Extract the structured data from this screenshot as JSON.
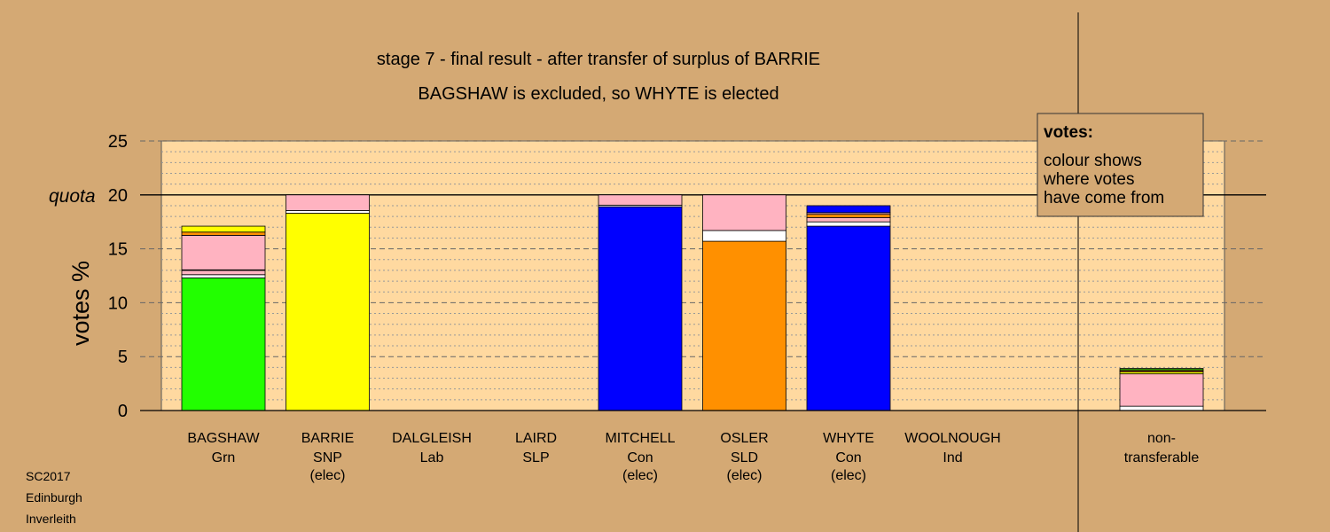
{
  "chart_data": {
    "type": "bar",
    "stacked": true,
    "title": "stage 7 - final result - after transfer of surplus of BARRIE",
    "subtitle": "BAGSHAW is excluded, so WHYTE is elected",
    "xlabel": "",
    "ylabel": "votes %",
    "ylim": [
      0,
      25
    ],
    "yticks": [
      0,
      5,
      10,
      15,
      20,
      25
    ],
    "quota": {
      "label": "quota",
      "value": 20
    },
    "grid": true,
    "colors": {
      "background": "#d4a974",
      "plot_area": "#ffd9a0",
      "green": "#22ff00",
      "yellow": "#ffff00",
      "blue": "#0000ff",
      "orange": "#ff9000",
      "pink": "#ffb3c1",
      "white": "#ffffff",
      "red": "#ff3030",
      "darkgreen": "#2e8b00"
    },
    "candidates": [
      {
        "name": "BAGSHAW",
        "party": "Grn",
        "status": "",
        "segments": [
          {
            "color": "green",
            "value": 12.3
          },
          {
            "color": "white",
            "value": 0.3
          },
          {
            "color": "pink",
            "value": 0.4
          },
          {
            "color": "white",
            "value": 0.05
          },
          {
            "color": "pink",
            "value": 3.2
          },
          {
            "color": "orange",
            "value": 0.3
          },
          {
            "color": "yellow",
            "value": 0.55
          }
        ]
      },
      {
        "name": "BARRIE",
        "party": "SNP",
        "status": "(elec)",
        "segments": [
          {
            "color": "yellow",
            "value": 18.3
          },
          {
            "color": "white",
            "value": 0.25
          },
          {
            "color": "pink",
            "value": 1.45
          }
        ]
      },
      {
        "name": "DALGLEISH",
        "party": "Lab",
        "status": "",
        "segments": []
      },
      {
        "name": "LAIRD",
        "party": "SLP",
        "status": "",
        "segments": []
      },
      {
        "name": "MITCHELL",
        "party": "Con",
        "status": "(elec)",
        "segments": [
          {
            "color": "blue",
            "value": 18.9
          },
          {
            "color": "white",
            "value": 0.15
          },
          {
            "color": "pink",
            "value": 0.95
          }
        ]
      },
      {
        "name": "OSLER",
        "party": "SLD",
        "status": "(elec)",
        "segments": [
          {
            "color": "orange",
            "value": 15.7
          },
          {
            "color": "white",
            "value": 1.0
          },
          {
            "color": "pink",
            "value": 3.3
          }
        ]
      },
      {
        "name": "WHYTE",
        "party": "Con",
        "status": "(elec)",
        "segments": [
          {
            "color": "blue",
            "value": 17.1
          },
          {
            "color": "white",
            "value": 0.4
          },
          {
            "color": "pink",
            "value": 0.4
          },
          {
            "color": "orange",
            "value": 0.3
          },
          {
            "color": "pink",
            "value": 0.15
          },
          {
            "color": "blue",
            "value": 0.65
          }
        ]
      },
      {
        "name": "WOOLNOUGH",
        "party": "Ind",
        "status": "",
        "segments": []
      }
    ],
    "nontransferable": {
      "label_line1": "non-",
      "label_line2": "transferable",
      "segments": [
        {
          "color": "white",
          "value": 0.4
        },
        {
          "color": "pink",
          "value": 3.0
        },
        {
          "color": "yellow",
          "value": 0.2
        },
        {
          "color": "red",
          "value": 0.1
        },
        {
          "color": "darkgreen",
          "value": 0.2
        }
      ]
    },
    "legend": {
      "placement": "top-right",
      "title": "votes:",
      "lines": [
        "colour shows",
        "where votes",
        "have come from"
      ]
    }
  },
  "footer": {
    "line1": "SC2017",
    "line2": "Edinburgh",
    "line3": "Inverleith"
  }
}
